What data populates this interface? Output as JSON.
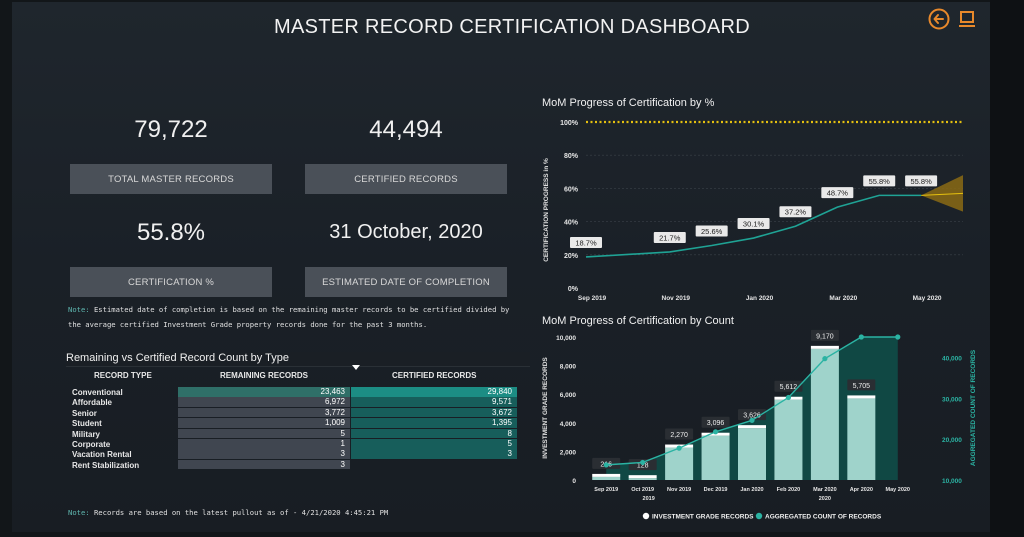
{
  "title": "MASTER RECORD CERTIFICATION DASHBOARD",
  "icons": {
    "back": "back-arrow-icon",
    "export": "export-icon"
  },
  "colors": {
    "accent_orange": "#e8892b",
    "teal": "#2bb3a3",
    "bar": "#9fd3cb",
    "gold": "#e5c00f"
  },
  "kpis": {
    "total": {
      "value": "79,722",
      "label": "TOTAL MASTER RECORDS"
    },
    "certified": {
      "value": "44,494",
      "label": "CERTIFIED RECORDS"
    },
    "percent": {
      "value": "55.8%",
      "label": "CERTIFICATION %"
    },
    "date": {
      "value": "31 October, 2020",
      "label": "ESTIMATED DATE OF COMPLETION"
    }
  },
  "note1": {
    "prefix": "Note:",
    "line1": " Estimated date of completion is based on the remaining master records to be certified divided by",
    "line2": "the average certified Investment Grade property records done for the past 3 months."
  },
  "note2": {
    "prefix": "Note:",
    "text": " Records are based on the latest pullout as of - 4/21/2020 4:45:21 PM"
  },
  "table": {
    "title": "Remaining vs Certified Record Count by Type",
    "headers": [
      "RECORD TYPE",
      "REMAINING RECORDS",
      "CERTIFIED RECORDS"
    ],
    "rows": [
      {
        "type": "Conventional",
        "remaining": "23,463",
        "certified": "29,840"
      },
      {
        "type": "Affordable",
        "remaining": "6,972",
        "certified": "9,571"
      },
      {
        "type": "Senior",
        "remaining": "3,772",
        "certified": "3,672"
      },
      {
        "type": "Student",
        "remaining": "1,009",
        "certified": "1,395"
      },
      {
        "type": "Military",
        "remaining": "5",
        "certified": "8"
      },
      {
        "type": "Corporate",
        "remaining": "1",
        "certified": "5"
      },
      {
        "type": "Vacation Rental",
        "remaining": "3",
        "certified": "3"
      },
      {
        "type": "Rent Stabilization",
        "remaining": "3",
        "certified": ""
      }
    ]
  },
  "chart_data": [
    {
      "type": "line",
      "title": "MoM Progress of Certification by %",
      "ylabel": "CERTIFICATION PROGRESS in %",
      "ylim": [
        0,
        100
      ],
      "yticks": [
        "0%",
        "20%",
        "40%",
        "60%",
        "80%",
        "100%"
      ],
      "x_ticks": [
        "Sep 2019",
        "Nov 2019",
        "Jan 2020",
        "Mar 2020",
        "May 2020"
      ],
      "x": [
        0,
        2,
        3,
        4,
        5,
        6,
        7,
        8
      ],
      "values": [
        18.7,
        21.7,
        25.6,
        30.1,
        37.2,
        48.7,
        55.8,
        55.8
      ],
      "labels": [
        "18.7%",
        "21.7%",
        "25.6%",
        "30.1%",
        "37.2%",
        "48.7%",
        "55.8%",
        "55.8%"
      ],
      "target": 100,
      "grid": true
    },
    {
      "type": "bar",
      "title": "MoM Progress of Certification by Count",
      "ylabel": "INVESTMENT GRADE RECORDS",
      "y2label": "AGGREGATED COUNT OF RECORDS",
      "ylim": [
        0,
        10000
      ],
      "y2lim": [
        10000,
        45000
      ],
      "yticks": [
        "0",
        "2,000",
        "4,000",
        "6,000",
        "8,000",
        "10,000"
      ],
      "y2ticks": [
        "10,000",
        "20,000",
        "30,000",
        "40,000"
      ],
      "categories": [
        "Sep 2019",
        "Oct 2019",
        "Nov 2019",
        "Dec 2019",
        "Jan 2020",
        "Feb 2020",
        "Mar 2020",
        "Apr 2020",
        "May 2020"
      ],
      "year_labels": [
        {
          "text": "2019"
        },
        {
          "text": "2020"
        }
      ],
      "series": [
        {
          "name": "INVESTMENT GRADE RECORDS",
          "values": [
            216,
            128,
            2270,
            3096,
            3626,
            5612,
            9170,
            5705,
            null
          ],
          "labels": [
            "216",
            "128",
            "2,270",
            "3,096",
            "3,626",
            "5,612",
            "9,170",
            "5,705",
            ""
          ]
        },
        {
          "name": "AGGREGATED COUNT OF RECORDS",
          "values": [
            13700,
            14300,
            17800,
            21800,
            24600,
            30200,
            39700,
            45000,
            45000
          ]
        }
      ],
      "legend": "bottom"
    }
  ]
}
